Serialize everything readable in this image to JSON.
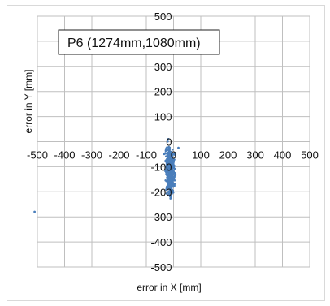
{
  "chart_data": {
    "type": "scatter",
    "annotation": "P6 (1274mm,1080mm)",
    "xlabel": "error in X [mm]",
    "ylabel": "error in Y [mm]",
    "xlim": [
      -500,
      500
    ],
    "ylim": [
      -500,
      500
    ],
    "x_ticks": [
      -500,
      -400,
      -300,
      -200,
      -100,
      0,
      100,
      200,
      300,
      400,
      500
    ],
    "y_ticks": [
      500,
      400,
      300,
      200,
      100,
      0,
      -100,
      -200,
      -300,
      -400,
      -500
    ],
    "grid": true,
    "marker_color": "#4a7ebb",
    "cluster": {
      "x_center": -12,
      "x_spread": 12,
      "y_center": -120,
      "y_spread": 80,
      "y_min": -310,
      "y_max": 135,
      "count": 520
    },
    "outliers": [
      {
        "x": -510,
        "y": -280
      },
      {
        "x": 18,
        "y": -25
      }
    ]
  }
}
